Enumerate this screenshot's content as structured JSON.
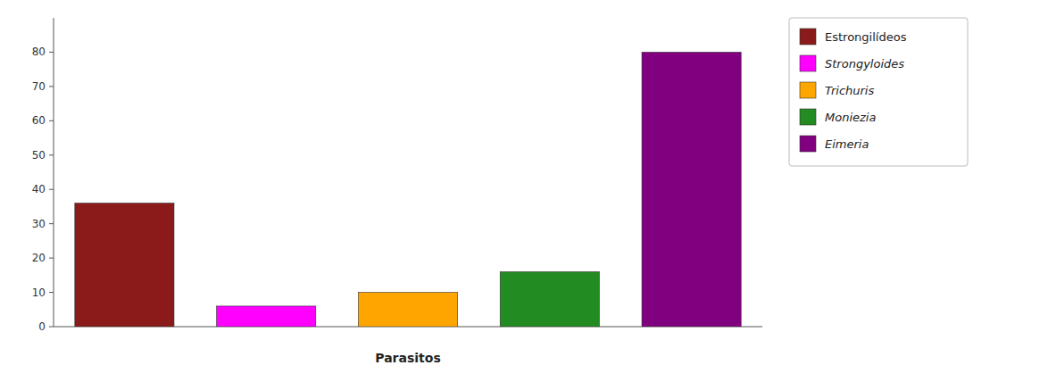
{
  "chart_data": {
    "type": "bar",
    "categories": [
      "Estrongilídeos",
      "Strongyloides",
      "Trichuris",
      "Moniezia",
      "Eimeria"
    ],
    "values": [
      36,
      6,
      10,
      16,
      80
    ],
    "colors": [
      "#8B1A1A",
      "#FF00FF",
      "#FFA500",
      "#228B22",
      "#800080"
    ],
    "xlabel": "Parasitos",
    "ylim": [
      0,
      90
    ],
    "yticks": [
      0,
      10,
      20,
      30,
      40,
      50,
      60,
      70,
      80
    ],
    "grid": false,
    "legend": "right",
    "tick_labels": "y"
  }
}
